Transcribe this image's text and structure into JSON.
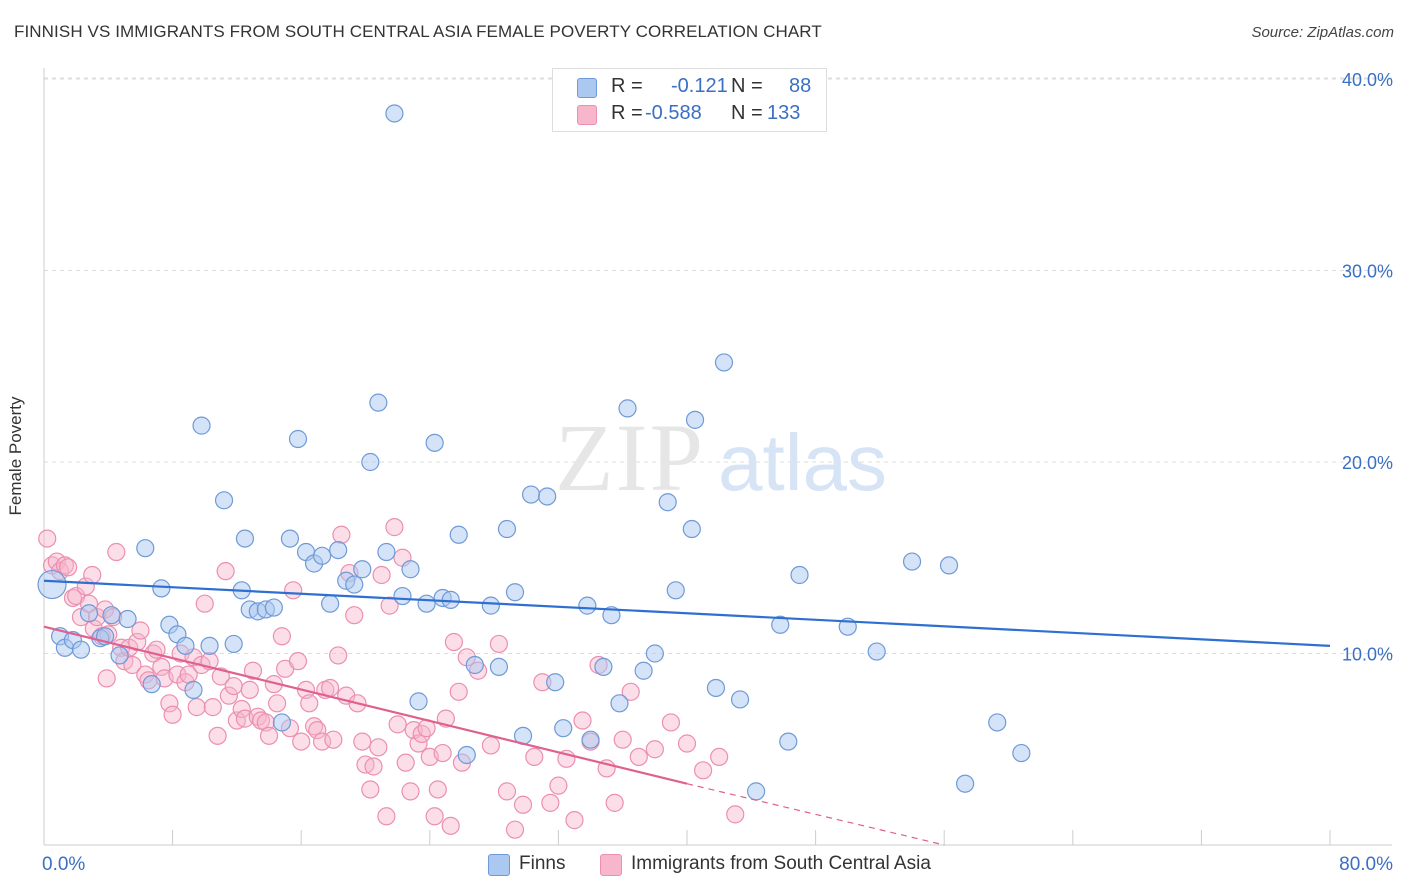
{
  "title": "FINNISH VS IMMIGRANTS FROM SOUTH CENTRAL ASIA FEMALE POVERTY CORRELATION CHART",
  "source": "Source: ZipAtlas.com",
  "watermark": {
    "zip": "ZIP",
    "atlas": "atlas"
  },
  "legend_top": {
    "rows": [
      {
        "r_label": "R =",
        "r_value": "-0.121",
        "n_label": "N =",
        "n_value": "88"
      },
      {
        "r_label": "R =",
        "r_value": "-0.588",
        "n_label": "N =",
        "n_value": "133"
      }
    ]
  },
  "colors": {
    "finns_fill": "#aac8f0",
    "finns_stroke": "#6f9ad8",
    "finns_line": "#2f6fcf",
    "imm_fill": "#f7b6cc",
    "imm_stroke": "#ec8fb0",
    "imm_line": "#e0608f",
    "tick_label": "#3a6fc4",
    "grid": "#dddddd"
  },
  "chart_data": {
    "type": "scatter",
    "title": "FINNISH VS IMMIGRANTS FROM SOUTH CENTRAL ASIA FEMALE POVERTY CORRELATION CHART",
    "xlabel": "",
    "ylabel": "Female Poverty",
    "xlim": [
      0,
      80
    ],
    "ylim": [
      0,
      40
    ],
    "x_tick_labels": [
      "0.0%",
      "80.0%"
    ],
    "y_ticks": [
      10,
      20,
      30,
      40
    ],
    "y_tick_labels": [
      "10.0%",
      "20.0%",
      "30.0%",
      "40.0%"
    ],
    "grid": true,
    "legend_placement": "top-center",
    "series": [
      {
        "name": "Finns",
        "r": -0.121,
        "n": 88,
        "trend": {
          "x": [
            0,
            80
          ],
          "y": [
            13.8,
            10.4
          ]
        },
        "points": [
          [
            0.5,
            13.6
          ],
          [
            1.0,
            10.9
          ],
          [
            1.3,
            10.3
          ],
          [
            1.8,
            10.7
          ],
          [
            2.3,
            10.2
          ],
          [
            2.8,
            12.1
          ],
          [
            3.5,
            10.8
          ],
          [
            3.8,
            10.9
          ],
          [
            4.2,
            12.0
          ],
          [
            4.7,
            9.9
          ],
          [
            5.2,
            11.8
          ],
          [
            6.3,
            15.5
          ],
          [
            6.7,
            8.4
          ],
          [
            7.3,
            13.4
          ],
          [
            7.8,
            11.5
          ],
          [
            8.3,
            11.0
          ],
          [
            8.8,
            10.4
          ],
          [
            9.3,
            8.1
          ],
          [
            9.8,
            21.9
          ],
          [
            10.3,
            10.4
          ],
          [
            11.2,
            18.0
          ],
          [
            11.8,
            10.5
          ],
          [
            12.3,
            13.3
          ],
          [
            12.5,
            16.0
          ],
          [
            12.8,
            12.3
          ],
          [
            13.3,
            12.2
          ],
          [
            13.8,
            12.3
          ],
          [
            14.3,
            12.4
          ],
          [
            14.8,
            6.4
          ],
          [
            15.3,
            16.0
          ],
          [
            15.8,
            21.2
          ],
          [
            16.3,
            15.3
          ],
          [
            16.8,
            14.7
          ],
          [
            17.3,
            15.1
          ],
          [
            17.8,
            12.6
          ],
          [
            18.3,
            15.4
          ],
          [
            18.8,
            13.8
          ],
          [
            19.3,
            13.6
          ],
          [
            19.8,
            14.4
          ],
          [
            20.3,
            20.0
          ],
          [
            20.8,
            23.1
          ],
          [
            21.3,
            15.3
          ],
          [
            21.8,
            38.2
          ],
          [
            22.3,
            13.0
          ],
          [
            22.8,
            14.4
          ],
          [
            23.3,
            7.5
          ],
          [
            23.8,
            12.6
          ],
          [
            24.3,
            21.0
          ],
          [
            24.8,
            12.9
          ],
          [
            25.3,
            12.8
          ],
          [
            25.8,
            16.2
          ],
          [
            26.3,
            4.7
          ],
          [
            26.8,
            9.4
          ],
          [
            27.8,
            12.5
          ],
          [
            28.3,
            9.3
          ],
          [
            28.8,
            16.5
          ],
          [
            29.3,
            13.2
          ],
          [
            29.8,
            5.7
          ],
          [
            30.3,
            18.3
          ],
          [
            31.3,
            18.2
          ],
          [
            31.8,
            8.5
          ],
          [
            32.3,
            6.1
          ],
          [
            33.8,
            12.5
          ],
          [
            34.0,
            5.5
          ],
          [
            34.8,
            9.3
          ],
          [
            35.3,
            12.0
          ],
          [
            35.8,
            7.4
          ],
          [
            36.3,
            22.8
          ],
          [
            37.3,
            9.1
          ],
          [
            38.0,
            10.0
          ],
          [
            38.8,
            17.9
          ],
          [
            39.3,
            13.3
          ],
          [
            40.3,
            16.5
          ],
          [
            40.5,
            22.2
          ],
          [
            42.3,
            25.2
          ],
          [
            41.8,
            8.2
          ],
          [
            43.3,
            7.6
          ],
          [
            44.3,
            2.8
          ],
          [
            45.8,
            11.5
          ],
          [
            46.3,
            5.4
          ],
          [
            47.0,
            14.1
          ],
          [
            50.0,
            11.4
          ],
          [
            51.8,
            10.1
          ],
          [
            54.0,
            14.8
          ],
          [
            56.3,
            14.6
          ],
          [
            57.3,
            3.2
          ],
          [
            59.3,
            6.4
          ],
          [
            60.8,
            4.8
          ]
        ]
      },
      {
        "name": "Immigrants from South Central Asia",
        "r": -0.588,
        "n": 133,
        "trend": {
          "x": [
            0,
            40
          ],
          "y": [
            11.4,
            3.2
          ]
        },
        "trend_dashed": {
          "x": [
            40,
            56
          ],
          "y": [
            3.2,
            0.0
          ]
        },
        "points": [
          [
            0.2,
            16.0
          ],
          [
            0.5,
            14.6
          ],
          [
            0.8,
            14.8
          ],
          [
            1.0,
            14.3
          ],
          [
            1.3,
            14.6
          ],
          [
            1.5,
            14.5
          ],
          [
            1.8,
            12.9
          ],
          [
            2.0,
            13.0
          ],
          [
            2.3,
            11.9
          ],
          [
            2.6,
            13.5
          ],
          [
            2.8,
            12.6
          ],
          [
            3.0,
            14.1
          ],
          [
            3.1,
            11.3
          ],
          [
            3.3,
            11.9
          ],
          [
            3.6,
            10.9
          ],
          [
            3.8,
            12.3
          ],
          [
            4.0,
            11.0
          ],
          [
            4.3,
            11.9
          ],
          [
            4.5,
            15.3
          ],
          [
            4.8,
            10.3
          ],
          [
            3.9,
            8.7
          ],
          [
            5.0,
            9.6
          ],
          [
            5.3,
            10.3
          ],
          [
            5.5,
            9.4
          ],
          [
            5.8,
            10.6
          ],
          [
            6.0,
            11.2
          ],
          [
            6.3,
            8.9
          ],
          [
            6.5,
            8.6
          ],
          [
            6.8,
            10.0
          ],
          [
            7.0,
            10.2
          ],
          [
            7.3,
            9.3
          ],
          [
            7.5,
            8.7
          ],
          [
            7.8,
            7.4
          ],
          [
            8.0,
            6.8
          ],
          [
            8.3,
            8.9
          ],
          [
            8.5,
            10.0
          ],
          [
            8.8,
            8.5
          ],
          [
            9.0,
            8.9
          ],
          [
            9.3,
            9.8
          ],
          [
            9.5,
            7.2
          ],
          [
            9.8,
            9.4
          ],
          [
            10.0,
            12.6
          ],
          [
            10.3,
            9.6
          ],
          [
            10.5,
            7.2
          ],
          [
            10.8,
            5.7
          ],
          [
            11.0,
            8.8
          ],
          [
            11.3,
            14.3
          ],
          [
            11.5,
            7.8
          ],
          [
            11.8,
            8.3
          ],
          [
            12.0,
            6.5
          ],
          [
            12.3,
            7.1
          ],
          [
            12.5,
            6.6
          ],
          [
            12.8,
            8.1
          ],
          [
            13.0,
            9.1
          ],
          [
            13.3,
            6.7
          ],
          [
            13.5,
            6.5
          ],
          [
            13.8,
            6.4
          ],
          [
            14.0,
            5.7
          ],
          [
            14.3,
            8.4
          ],
          [
            14.5,
            7.4
          ],
          [
            14.8,
            10.9
          ],
          [
            15.0,
            9.2
          ],
          [
            15.3,
            6.1
          ],
          [
            15.5,
            13.3
          ],
          [
            15.8,
            9.6
          ],
          [
            16.0,
            5.4
          ],
          [
            16.3,
            8.1
          ],
          [
            16.5,
            7.4
          ],
          [
            16.8,
            6.2
          ],
          [
            17.0,
            6.0
          ],
          [
            17.3,
            5.4
          ],
          [
            17.5,
            8.1
          ],
          [
            17.8,
            8.2
          ],
          [
            18.0,
            5.5
          ],
          [
            18.3,
            9.9
          ],
          [
            18.5,
            16.2
          ],
          [
            18.8,
            7.8
          ],
          [
            19.0,
            14.2
          ],
          [
            19.3,
            12.0
          ],
          [
            19.5,
            7.4
          ],
          [
            19.8,
            5.4
          ],
          [
            20.0,
            4.2
          ],
          [
            20.3,
            2.9
          ],
          [
            20.5,
            4.1
          ],
          [
            20.8,
            5.1
          ],
          [
            21.0,
            14.1
          ],
          [
            21.3,
            1.5
          ],
          [
            21.5,
            12.5
          ],
          [
            21.8,
            16.6
          ],
          [
            22.0,
            6.3
          ],
          [
            22.3,
            15.0
          ],
          [
            22.5,
            4.3
          ],
          [
            22.8,
            2.8
          ],
          [
            23.0,
            6.0
          ],
          [
            23.3,
            5.3
          ],
          [
            23.5,
            5.8
          ],
          [
            23.8,
            6.1
          ],
          [
            24.0,
            4.6
          ],
          [
            24.3,
            1.5
          ],
          [
            24.5,
            2.9
          ],
          [
            24.8,
            4.8
          ],
          [
            25.0,
            6.6
          ],
          [
            25.3,
            1.0
          ],
          [
            25.5,
            10.6
          ],
          [
            25.8,
            8.0
          ],
          [
            26.0,
            4.3
          ],
          [
            26.3,
            9.8
          ],
          [
            27.0,
            9.1
          ],
          [
            27.8,
            5.2
          ],
          [
            28.3,
            10.5
          ],
          [
            28.8,
            2.8
          ],
          [
            29.3,
            0.8
          ],
          [
            29.8,
            2.1
          ],
          [
            30.5,
            4.6
          ],
          [
            31.0,
            8.5
          ],
          [
            31.5,
            2.2
          ],
          [
            32.0,
            3.1
          ],
          [
            32.5,
            4.5
          ],
          [
            33.0,
            1.3
          ],
          [
            33.5,
            6.5
          ],
          [
            34.0,
            5.4
          ],
          [
            34.5,
            9.4
          ],
          [
            35.0,
            4.0
          ],
          [
            35.5,
            2.2
          ],
          [
            36.0,
            5.5
          ],
          [
            36.5,
            8.0
          ],
          [
            37.0,
            4.6
          ],
          [
            38.0,
            5.0
          ],
          [
            39.0,
            6.4
          ],
          [
            40.0,
            5.3
          ],
          [
            41.0,
            3.9
          ],
          [
            42.0,
            4.6
          ],
          [
            43.0,
            1.6
          ]
        ]
      }
    ]
  },
  "bottom_legend": [
    {
      "label": "Finns"
    },
    {
      "label": "Immigrants from South Central Asia"
    }
  ]
}
